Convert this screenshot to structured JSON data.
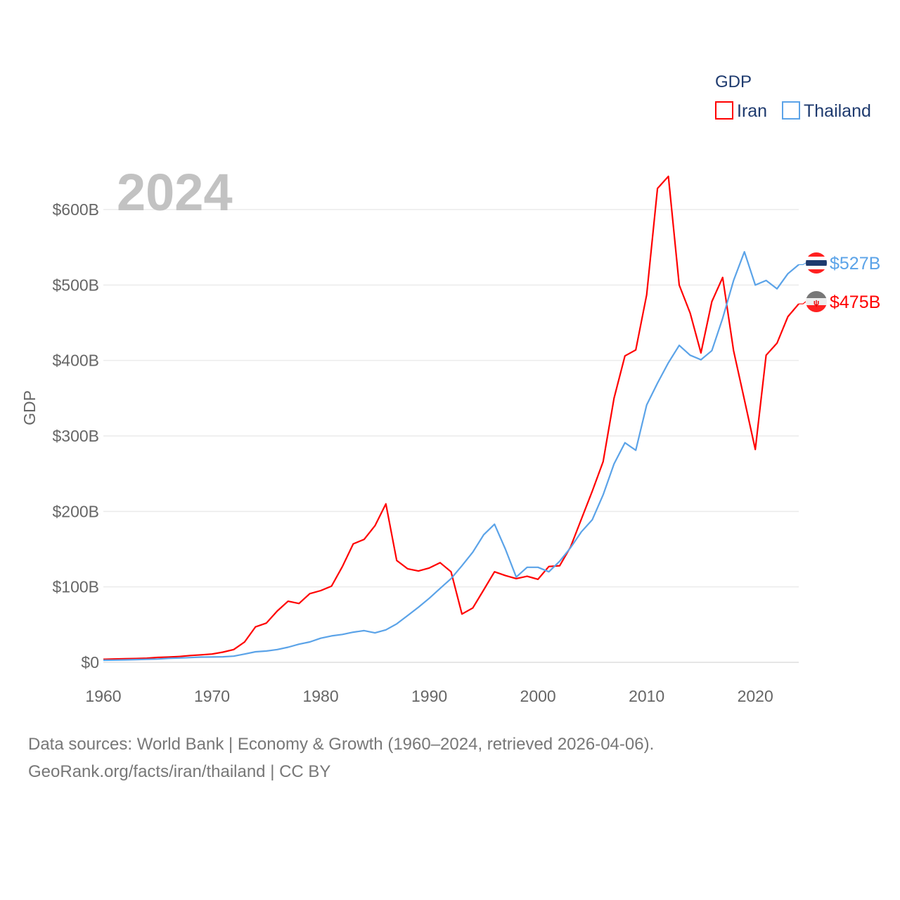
{
  "chart_data": {
    "type": "line",
    "title": "GDP",
    "year_label": "2024",
    "ylabel": "GDP",
    "xlabel": "",
    "xlim": [
      1960,
      2024
    ],
    "ylim": [
      0,
      650
    ],
    "grid": true,
    "legend_placement": "top-right",
    "x_ticks": [
      "1960",
      "1970",
      "1980",
      "1990",
      "2000",
      "2010",
      "2020"
    ],
    "y_ticks": [
      {
        "v": 0,
        "label": "$0"
      },
      {
        "v": 100,
        "label": "$100B"
      },
      {
        "v": 200,
        "label": "$200B"
      },
      {
        "v": 300,
        "label": "$300B"
      },
      {
        "v": 400,
        "label": "$400B"
      },
      {
        "v": 500,
        "label": "$500B"
      },
      {
        "v": 600,
        "label": "$600B"
      }
    ],
    "x": [
      1960,
      1961,
      1962,
      1963,
      1964,
      1965,
      1966,
      1967,
      1968,
      1969,
      1970,
      1971,
      1972,
      1973,
      1974,
      1975,
      1976,
      1977,
      1978,
      1979,
      1980,
      1981,
      1982,
      1983,
      1984,
      1985,
      1986,
      1987,
      1988,
      1989,
      1990,
      1991,
      1992,
      1993,
      1994,
      1995,
      1996,
      1997,
      1998,
      1999,
      2000,
      2001,
      2002,
      2003,
      2004,
      2005,
      2006,
      2007,
      2008,
      2009,
      2010,
      2011,
      2012,
      2013,
      2014,
      2015,
      2016,
      2017,
      2018,
      2019,
      2020,
      2021,
      2022,
      2023,
      2024
    ],
    "series": [
      {
        "name": "Iran",
        "color": "#ff0000",
        "end_label": "$475B",
        "flag": "iran-flag",
        "values": [
          4,
          4.5,
          4.8,
          5,
          5.5,
          6.5,
          7,
          7.7,
          9,
          10,
          11,
          13.5,
          17,
          27,
          47,
          52,
          68,
          81,
          78,
          91,
          95,
          101,
          127,
          157,
          163,
          181,
          210,
          135,
          124,
          121,
          125,
          132,
          120,
          64,
          72,
          96,
          120,
          115,
          111,
          114,
          110,
          127,
          128,
          153,
          190,
          227,
          266,
          350,
          406,
          414,
          487,
          628,
          644,
          500,
          463,
          410,
          478,
          510,
          413,
          348,
          282,
          407,
          423,
          458,
          475
        ]
      },
      {
        "name": "Thailand",
        "color": "#5ba3e8",
        "end_label": "$527B",
        "flag": "thailand-flag",
        "values": [
          2.8,
          3,
          3.3,
          3.6,
          4,
          4.4,
          5.3,
          5.8,
          6.3,
          7,
          7.1,
          7.4,
          8.2,
          11,
          14,
          15,
          17,
          20,
          24,
          27,
          32,
          35,
          37,
          40,
          42,
          39,
          43,
          51,
          62,
          73,
          85,
          98,
          111,
          128,
          146,
          169,
          183,
          150,
          113,
          126,
          126,
          120,
          134,
          152,
          173,
          189,
          222,
          263,
          291,
          281,
          341,
          370,
          397,
          420,
          407,
          401,
          413,
          456,
          506,
          544,
          500,
          506,
          495,
          515,
          527
        ]
      }
    ]
  },
  "footer": {
    "line1": "Data sources: World Bank | Economy & Growth (1960–2024, retrieved 2026-04-06).",
    "line2": "GeoRank.org/facts/iran/thailand | CC BY"
  }
}
